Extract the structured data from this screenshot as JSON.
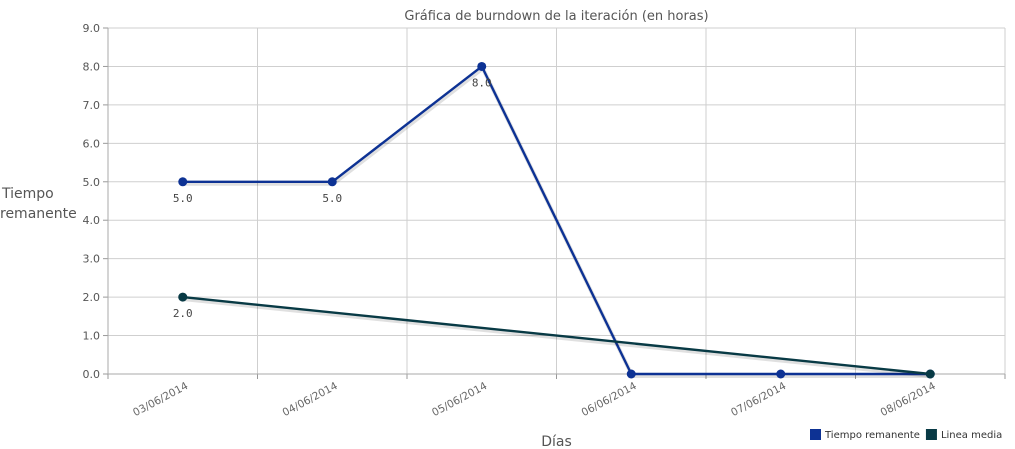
{
  "chart_data": {
    "type": "line",
    "title": "Gráfica de burndown de la iteración (en horas)",
    "xlabel": "Días",
    "ylabel": [
      "Tiempo",
      "remanente"
    ],
    "categories": [
      "03/06/2014",
      "04/06/2014",
      "05/06/2014",
      "06/06/2014",
      "07/06/2014",
      "08/06/2014"
    ],
    "ylim": [
      0,
      9
    ],
    "yticks": [
      "0.0",
      "1.0",
      "2.0",
      "3.0",
      "4.0",
      "5.0",
      "6.0",
      "7.0",
      "8.0",
      "9.0"
    ],
    "grid": true,
    "legend_position": "bottom-right",
    "series": [
      {
        "name": "Tiempo remanente",
        "color": "#0d3294",
        "x": [
          "03/06/2014",
          "04/06/2014",
          "05/06/2014",
          "06/06/2014",
          "07/06/2014",
          "08/06/2014"
        ],
        "values": [
          5.0,
          5.0,
          8.0,
          0.0,
          0.0,
          0.0
        ],
        "labels": [
          "5.0",
          "5.0",
          "8.0",
          "",
          "",
          ""
        ]
      },
      {
        "name": "Linea media",
        "color": "#083a45",
        "x": [
          "03/06/2014",
          "08/06/2014"
        ],
        "values": [
          2.0,
          0.0
        ],
        "labels": [
          "2.0",
          ""
        ]
      }
    ]
  }
}
